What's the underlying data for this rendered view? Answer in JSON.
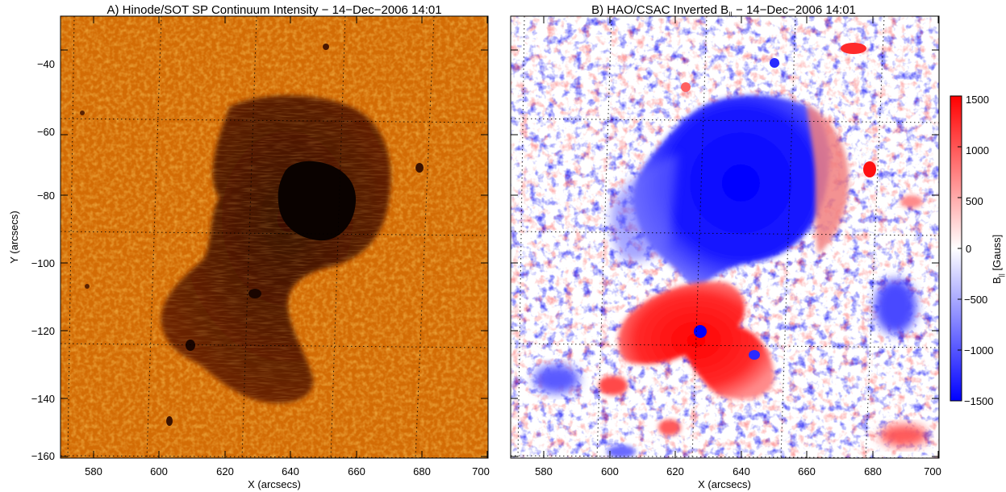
{
  "panels": [
    {
      "title": "A) Hinode/SOT SP Continuum Intensity − 14−Dec−2006 14:01",
      "xlabel": "X (arcsecs)",
      "ylabel": "Y (arcsecs)",
      "xlim": [
        570,
        700
      ],
      "ylim": [
        -161,
        -30
      ],
      "xticks": [
        "580",
        "600",
        "620",
        "640",
        "660",
        "680",
        "700"
      ],
      "yticks": [
        "−40",
        "−60",
        "−80",
        "−100",
        "−120",
        "−140",
        "−160"
      ],
      "colors": {
        "background": "#d36c05",
        "umbra": "#0a0200",
        "penumbra": "#5c1e02"
      }
    },
    {
      "title_main": "B) HAO/CSAC Inverted B",
      "title_sub": "||",
      "title_rest": " − 14−Dec−2006 14:01",
      "xlabel": "X (arcsecs)",
      "xlim": [
        570,
        700
      ],
      "ylim": [
        -161,
        -30
      ],
      "xticks": [
        "580",
        "600",
        "620",
        "640",
        "660",
        "680",
        "700"
      ],
      "colors": {
        "negative": "#0000ff",
        "positive": "#ff0000",
        "zero": "#ffffff"
      }
    }
  ],
  "colorbar": {
    "label_main": "B",
    "label_sub": "||",
    "label_unit": " [Gauss]",
    "range": [
      -1500,
      1500
    ],
    "ticks": [
      "1500",
      "1000",
      "500",
      "0",
      "−500",
      "−1000",
      "−1500"
    ]
  }
}
